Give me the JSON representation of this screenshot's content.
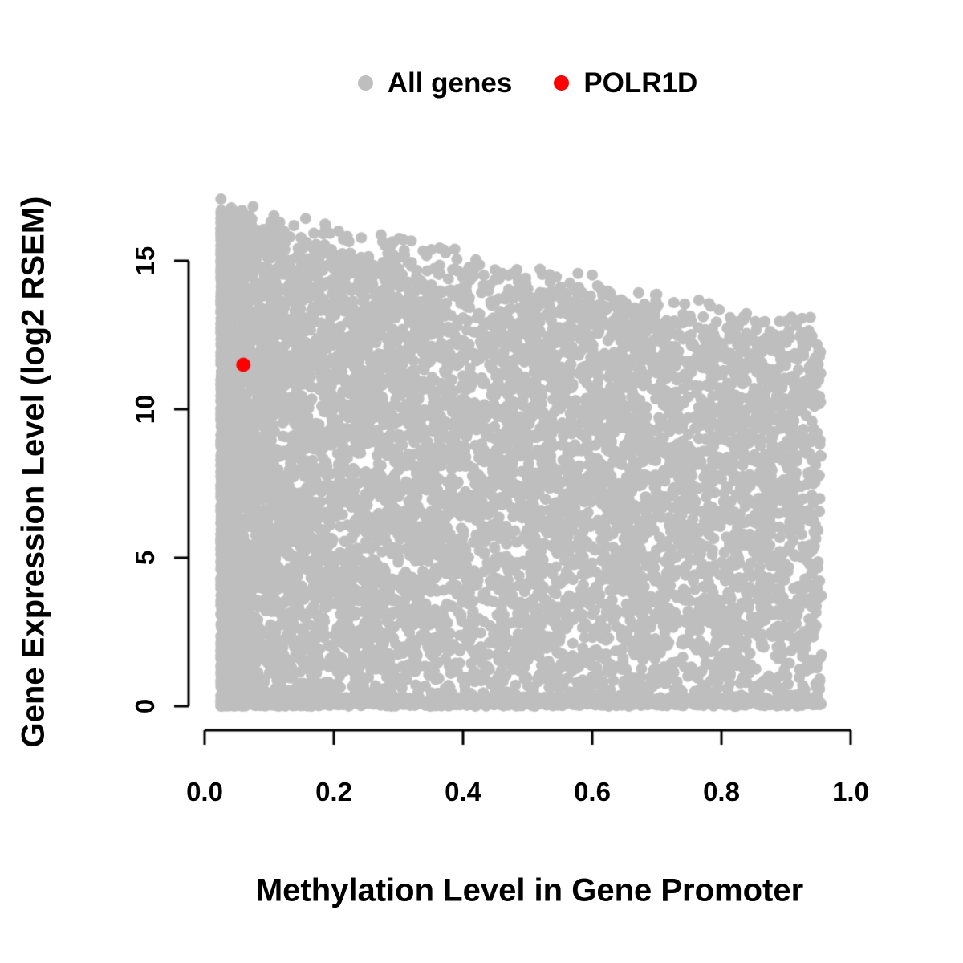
{
  "chart_data": {
    "type": "scatter",
    "title": "",
    "xlabel": "Methylation Level in Gene Promoter",
    "ylabel": "Gene Expression Level (log2 RSEM)",
    "xlim": [
      0.0,
      1.0
    ],
    "ylim": [
      0,
      17
    ],
    "grid": false,
    "legend_position": "top-center",
    "xticks": {
      "labels": [
        "0.0",
        "0.2",
        "0.4",
        "0.6",
        "0.8",
        "1.0"
      ],
      "values": [
        0,
        0.2,
        0.4,
        0.6,
        0.8,
        1.0
      ]
    },
    "yticks": {
      "labels": [
        "0",
        "5",
        "10",
        "15"
      ],
      "values": [
        0,
        5,
        10,
        15
      ]
    },
    "legend": [
      {
        "label": "All genes",
        "color": "#bebebe"
      },
      {
        "label": "POLR1D",
        "color": "#ff0000"
      }
    ],
    "series": [
      {
        "name": "All genes",
        "type": "cloud",
        "color": "#bebebe",
        "marker_radius_px": 7,
        "cloud": {
          "n": 9000,
          "seed": 20240613,
          "x_min": 0.025,
          "x_max": 0.955,
          "envelope_intercept": 16.6,
          "envelope_slope": -4.2,
          "envelope_noise": 1.2,
          "y_power": 0.92,
          "low_x_weight": 0.55,
          "low_x_power": 2.2,
          "baseline_fraction": 0.1,
          "baseline_max_y": 0.3
        }
      },
      {
        "name": "POLR1D",
        "type": "points",
        "color": "#ff0000",
        "marker_radius_px": 9,
        "points": [
          [
            0.06,
            11.5
          ]
        ]
      }
    ]
  }
}
